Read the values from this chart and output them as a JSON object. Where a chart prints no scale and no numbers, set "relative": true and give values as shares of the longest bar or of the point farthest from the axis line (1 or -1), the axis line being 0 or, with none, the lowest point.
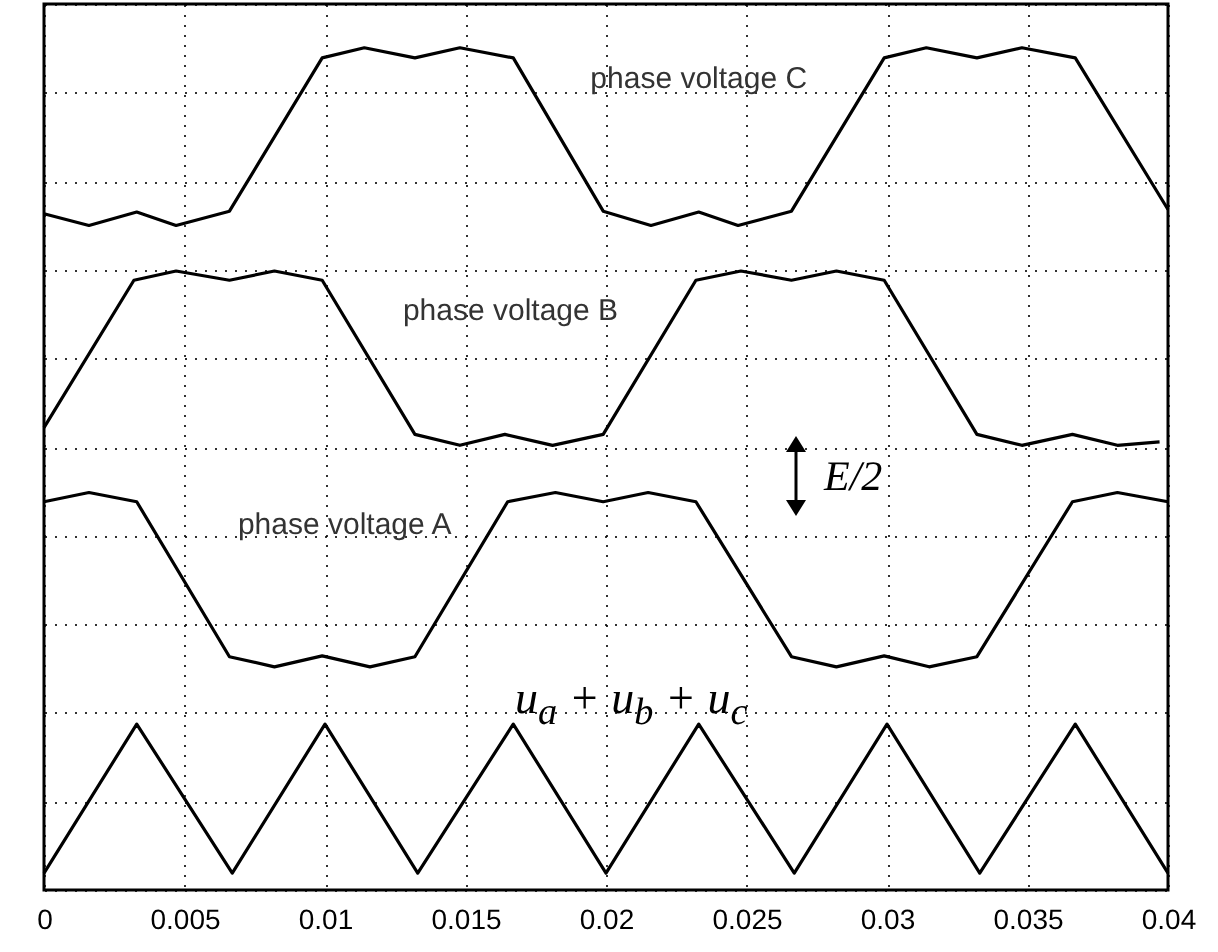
{
  "chart_data": {
    "type": "line",
    "relative": true,
    "xlim": [
      0,
      0.04
    ],
    "xticks": [
      0,
      0.005,
      0.01,
      0.015,
      0.02,
      0.025,
      0.03,
      0.035,
      0.04
    ],
    "grid": true,
    "line_style": "solid",
    "annotations": [
      "E/2"
    ],
    "series": [
      {
        "name": "phase voltage C",
        "color": "#000000",
        "x": [
          0,
          0.0016,
          0.0033,
          0.0047,
          0.0066,
          0.0099,
          0.0114,
          0.0132,
          0.0148,
          0.0167,
          0.0199,
          0.0216,
          0.0233,
          0.0247,
          0.0266,
          0.0299,
          0.0314,
          0.0332,
          0.0348,
          0.0367,
          0.04
        ],
        "values": [
          0.803,
          0.789,
          0.805,
          0.789,
          0.806,
          0.988,
          1.0,
          0.988,
          1.0,
          0.988,
          0.806,
          0.789,
          0.805,
          0.789,
          0.806,
          0.988,
          1.0,
          0.988,
          1.0,
          0.988,
          0.808
        ]
      },
      {
        "name": "phase voltage B",
        "color": "#000000",
        "x": [
          0,
          0.0032,
          0.0047,
          0.0066,
          0.0082,
          0.0099,
          0.0132,
          0.0148,
          0.0164,
          0.0181,
          0.0199,
          0.0232,
          0.0248,
          0.0266,
          0.0282,
          0.0299,
          0.0332,
          0.0348,
          0.0366,
          0.0382,
          0.0397
        ],
        "values": [
          0.549,
          0.724,
          0.735,
          0.724,
          0.735,
          0.724,
          0.541,
          0.528,
          0.541,
          0.528,
          0.541,
          0.724,
          0.735,
          0.724,
          0.735,
          0.724,
          0.541,
          0.528,
          0.541,
          0.528,
          0.532
        ]
      },
      {
        "name": "phase voltage A",
        "color": "#000000",
        "x": [
          0,
          0.0016,
          0.0033,
          0.0066,
          0.0082,
          0.0099,
          0.0116,
          0.0132,
          0.0165,
          0.0182,
          0.0199,
          0.0215,
          0.0232,
          0.0266,
          0.0282,
          0.0299,
          0.0315,
          0.0332,
          0.0366,
          0.0382,
          0.04
        ],
        "values": [
          0.461,
          0.472,
          0.461,
          0.277,
          0.265,
          0.278,
          0.265,
          0.277,
          0.461,
          0.472,
          0.461,
          0.472,
          0.461,
          0.277,
          0.265,
          0.278,
          0.265,
          0.277,
          0.461,
          0.472,
          0.461
        ]
      },
      {
        "name": "u$_{a}$ + u$_{b}$ + u$_{c}$",
        "color": "#000000",
        "x": [
          0,
          0.0033,
          0.0067,
          0.01,
          0.0133,
          0.0167,
          0.02,
          0.0233,
          0.0267,
          0.03,
          0.0333,
          0.0367,
          0.04
        ],
        "values": [
          0.02,
          0.197,
          0.02,
          0.197,
          0.02,
          0.197,
          0.02,
          0.197,
          0.02,
          0.197,
          0.02,
          0.197,
          0.02
        ]
      }
    ]
  }
}
